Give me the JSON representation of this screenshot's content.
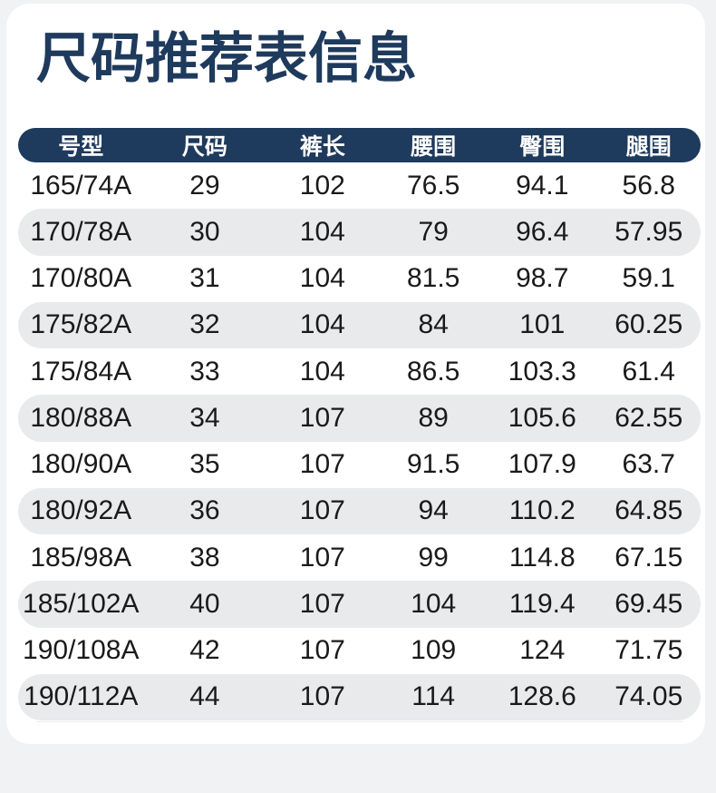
{
  "page": {
    "title": "尺码推荐表信息"
  },
  "colors": {
    "accent_navy": "#1e3a5c",
    "header_text": "#ffffff",
    "row_alt_bg": "#e8eaec",
    "body_text": "#1a1a1a",
    "page_bg": "#f1f2f3",
    "card_bg": "#ffffff"
  },
  "chart_data": {
    "type": "table",
    "title": "尺码推荐表信息",
    "columns": [
      "号型",
      "尺码",
      "裤长",
      "腰围",
      "臀围",
      "腿围"
    ],
    "rows": [
      [
        "165/74A",
        "29",
        "102",
        "76.5",
        "94.1",
        "56.8"
      ],
      [
        "170/78A",
        "30",
        "104",
        "79",
        "96.4",
        "57.95"
      ],
      [
        "170/80A",
        "31",
        "104",
        "81.5",
        "98.7",
        "59.1"
      ],
      [
        "175/82A",
        "32",
        "104",
        "84",
        "101",
        "60.25"
      ],
      [
        "175/84A",
        "33",
        "104",
        "86.5",
        "103.3",
        "61.4"
      ],
      [
        "180/88A",
        "34",
        "107",
        "89",
        "105.6",
        "62.55"
      ],
      [
        "180/90A",
        "35",
        "107",
        "91.5",
        "107.9",
        "63.7"
      ],
      [
        "180/92A",
        "36",
        "107",
        "94",
        "110.2",
        "64.85"
      ],
      [
        "185/98A",
        "38",
        "107",
        "99",
        "114.8",
        "67.15"
      ],
      [
        "185/102A",
        "40",
        "107",
        "104",
        "119.4",
        "69.45"
      ],
      [
        "190/108A",
        "42",
        "107",
        "109",
        "124",
        "71.75"
      ],
      [
        "190/112A",
        "44",
        "107",
        "114",
        "128.6",
        "74.05"
      ]
    ],
    "layout": {
      "header_style": "navy pill, white text, fully rounded ends",
      "alternate_rows": "even rows shaded light gray pills",
      "grid": "off"
    }
  }
}
